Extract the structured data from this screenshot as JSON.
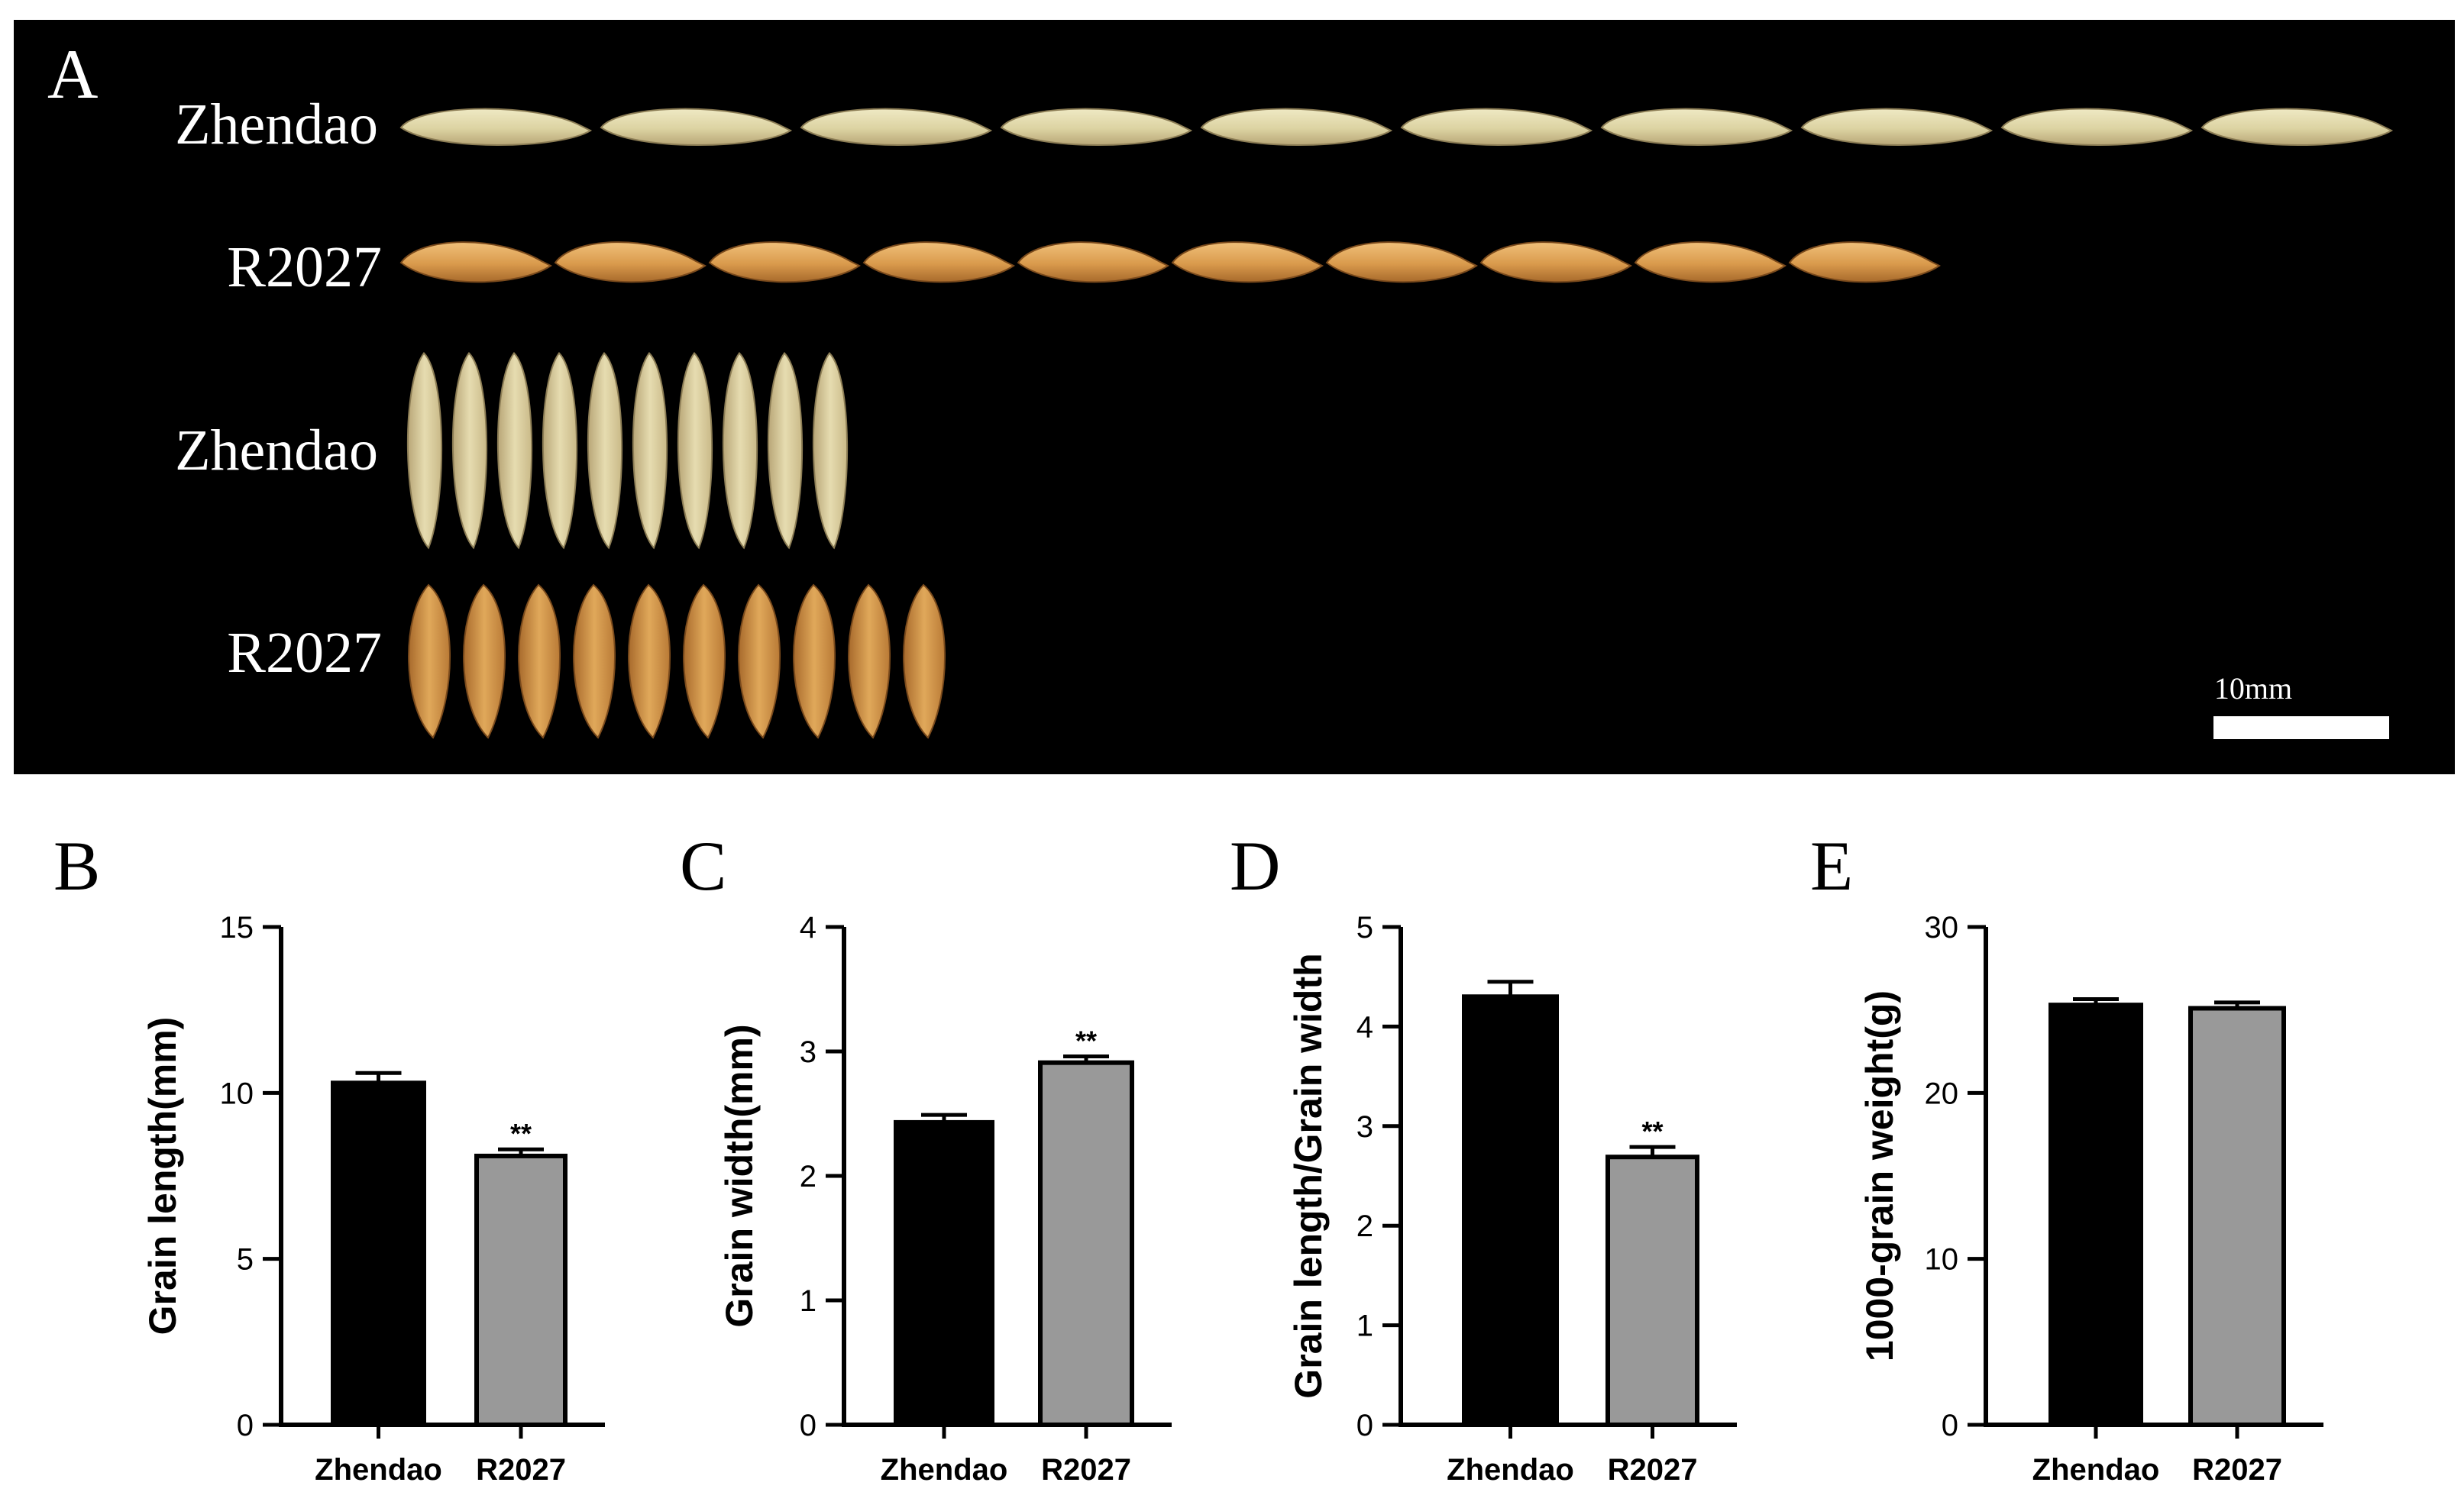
{
  "panel_a": {
    "letter": "A",
    "rows": [
      {
        "label": "Zhendao",
        "orientation": "horizontal",
        "grains": 10,
        "tone": "pale"
      },
      {
        "label": "R2027",
        "orientation": "horizontal",
        "grains": 10,
        "tone": "golden"
      },
      {
        "label": "Zhendao",
        "orientation": "vertical",
        "grains": 10,
        "tone": "pale"
      },
      {
        "label": "R2027",
        "orientation": "vertical",
        "grains": 10,
        "tone": "golden"
      }
    ],
    "scale_bar_label": "10mm"
  },
  "colors": {
    "photo_bg": "#000000",
    "zhendao_bar": "#000000",
    "r2027_bar": "#999999",
    "pale_grain": "#dcd3a2",
    "golden_grain": "#d99a4c"
  },
  "chart_data": [
    {
      "panel": "B",
      "type": "bar",
      "categories": [
        "Zhendao",
        "R2027"
      ],
      "values": [
        10.3,
        8.1
      ],
      "errors": [
        0.3,
        0.2
      ],
      "significance": [
        "",
        "**"
      ],
      "ylabel": "Grain length(mm)",
      "ylim": [
        0,
        15
      ],
      "yticks": [
        0,
        5,
        10,
        15
      ]
    },
    {
      "panel": "C",
      "type": "bar",
      "categories": [
        "Zhendao",
        "R2027"
      ],
      "values": [
        2.43,
        2.91
      ],
      "errors": [
        0.06,
        0.05
      ],
      "significance": [
        "",
        "**"
      ],
      "ylabel": "Grain width(mm)",
      "ylim": [
        0,
        4
      ],
      "yticks": [
        0,
        1,
        2,
        3,
        4
      ]
    },
    {
      "panel": "D",
      "type": "bar",
      "categories": [
        "Zhendao",
        "R2027"
      ],
      "values": [
        4.3,
        2.69
      ],
      "errors": [
        0.15,
        0.1
      ],
      "significance": [
        "",
        "**"
      ],
      "ylabel": "Grain length/Grain width",
      "ylim": [
        0,
        5
      ],
      "yticks": [
        0,
        1,
        2,
        3,
        4,
        5
      ]
    },
    {
      "panel": "E",
      "type": "bar",
      "categories": [
        "Zhendao",
        "R2027"
      ],
      "values": [
        25.3,
        25.1
      ],
      "errors": [
        0.35,
        0.35
      ],
      "significance": [
        "",
        ""
      ],
      "ylabel": "1000-grain weight(g)",
      "ylim": [
        0,
        30
      ],
      "yticks": [
        0,
        10,
        20,
        30
      ]
    }
  ]
}
